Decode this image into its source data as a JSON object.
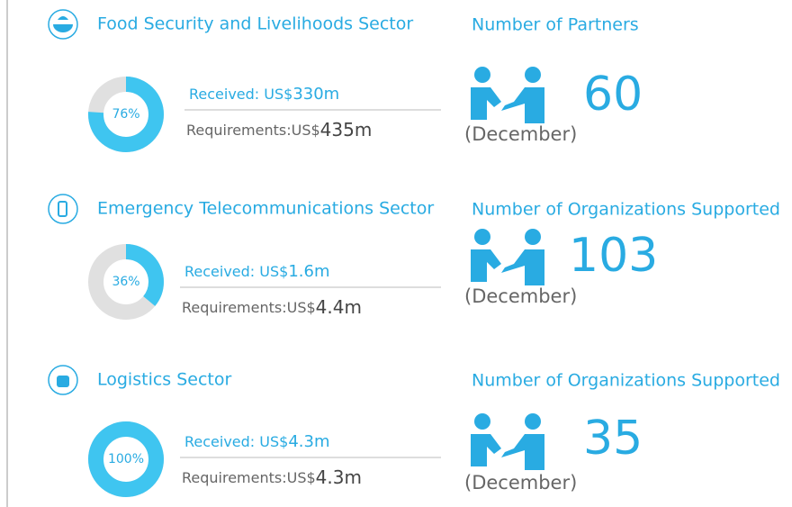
{
  "sectors": [
    {
      "name": "Food Security and Livelihoods Sector",
      "percent": 76,
      "percent_label": "76%",
      "received_label": "Received: US$",
      "received_amount": "330m",
      "requirements_label": "Requirements:US$",
      "requirements_amount": "435m",
      "metric_label": "Number of Partners",
      "metric_value": 60,
      "metric_period": "(December)"
    },
    {
      "name": "Emergency Telecommunications Sector",
      "percent": 36,
      "percent_label": "36%",
      "received_label": "Received: US$",
      "received_amount": "1.6m",
      "requirements_label": "Requirements:US$",
      "requirements_amount": "4.4m",
      "metric_label": "Number of Organizations Supported",
      "metric_value": 103,
      "metric_period": "(December)"
    },
    {
      "name": "Logistics Sector",
      "percent": 100,
      "percent_label": "100%",
      "received_label": "Received: US$",
      "received_amount": "4.3m",
      "requirements_label": "Requirements:US$",
      "requirements_amount": "4.3m",
      "metric_label": "Number of Organizations Supported",
      "metric_value": 35,
      "metric_period": "(December)"
    }
  ]
}
